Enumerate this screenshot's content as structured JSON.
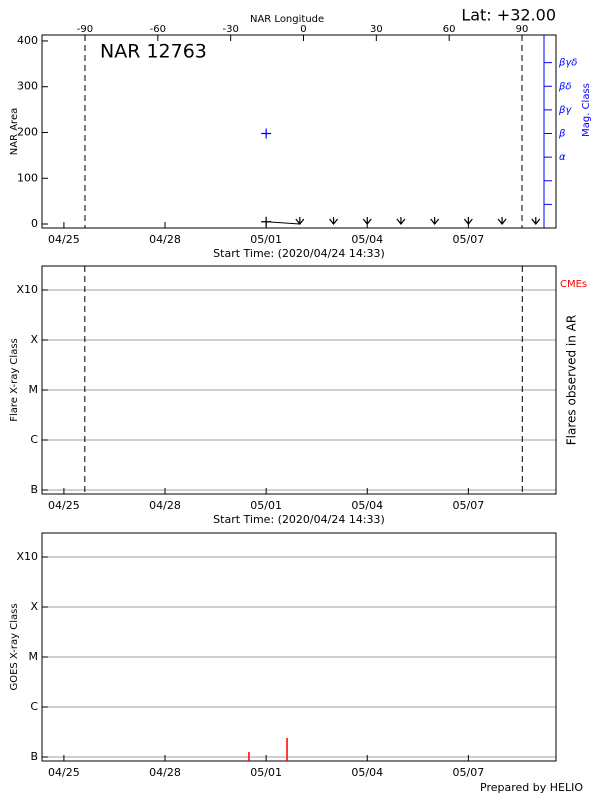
{
  "chart_data": [
    {
      "type": "line",
      "title": "NAR 12763",
      "annotation": "Lat: +32.00",
      "xlabel": "Start Time: (2020/04/24 14:33)",
      "ylabel": "NAR Area",
      "x2label": "NAR Longitude",
      "y2label": "Mag. Class",
      "xlim": [
        -0.65,
        14.6
      ],
      "xticks": [
        {
          "value": 0,
          "label": "04/25"
        },
        {
          "value": 3,
          "label": "04/28"
        },
        {
          "value": 6,
          "label": "05/01"
        },
        {
          "value": 9,
          "label": "05/04"
        },
        {
          "value": 12,
          "label": "05/07"
        }
      ],
      "ylim": [
        -8.7,
        413
      ],
      "yticks": [
        0,
        100,
        200,
        300,
        400
      ],
      "x2lim": [
        -107.7,
        104.0
      ],
      "x2ticks": [
        -90,
        -60,
        -30,
        0,
        30,
        60,
        90
      ],
      "x2_vlines": [
        -90,
        90
      ],
      "y2lim": [
        0,
        8.17
      ],
      "y2ticks": [
        {
          "value": 1,
          "label": null
        },
        {
          "value": 2,
          "label": null
        },
        {
          "value": 3,
          "label": "α"
        },
        {
          "value": 4,
          "label": "β"
        },
        {
          "value": 5,
          "label": "βγ"
        },
        {
          "value": 6,
          "label": "βδ"
        },
        {
          "value": 7,
          "label": "βγδ"
        }
      ],
      "y2color": "#0000ff",
      "grid": false,
      "series": [
        {
          "color": "#000000",
          "x": [
            6,
            7
          ],
          "values": [
            5,
            0
          ],
          "markers": [
            "+",
            "v"
          ],
          "line": true
        },
        {
          "color": "#000000",
          "x": [
            8,
            9,
            10,
            11,
            12,
            13,
            14
          ],
          "values": [
            0,
            0,
            0,
            0,
            0,
            0,
            0
          ],
          "markers": [
            "v",
            "v",
            "v",
            "v",
            "v",
            "v",
            "v"
          ],
          "line": false
        },
        {
          "color": "#0000ff",
          "axis": "y2",
          "x": [
            6
          ],
          "values": [
            4
          ],
          "markers": [
            "+"
          ],
          "line": false
        }
      ]
    },
    {
      "type": "line",
      "xlabel": "Start Time: (2020/04/24 14:33)",
      "ylabel": "Flare X-ray Class",
      "y2label": "Flares observed in AR",
      "annotation": "CMEs",
      "annotation_color": "#ff0000",
      "xlim": [
        -0.65,
        14.6
      ],
      "xticks": [
        {
          "value": 0,
          "label": "04/25"
        },
        {
          "value": 3,
          "label": "04/28"
        },
        {
          "value": 6,
          "label": "05/01"
        },
        {
          "value": 9,
          "label": "05/04"
        },
        {
          "value": 12,
          "label": "05/07"
        }
      ],
      "ylim": [
        -0.08,
        4.48
      ],
      "yticks": [
        {
          "value": 0,
          "label": "B"
        },
        {
          "value": 1,
          "label": "C"
        },
        {
          "value": 2,
          "label": "M"
        },
        {
          "value": 3,
          "label": "X"
        },
        {
          "value": 4,
          "label": "X10"
        }
      ],
      "vlines": [
        0.62,
        13.6
      ],
      "grid": true,
      "series": []
    },
    {
      "type": "bar",
      "ylabel": "GOES X-ray Class",
      "xlim": [
        -0.65,
        14.6
      ],
      "xticks": [
        {
          "value": 0,
          "label": "04/25"
        },
        {
          "value": 3,
          "label": "04/28"
        },
        {
          "value": 6,
          "label": "05/01"
        },
        {
          "value": 9,
          "label": "05/04"
        },
        {
          "value": 12,
          "label": "05/07"
        }
      ],
      "ylim": [
        -0.08,
        4.48
      ],
      "yticks": [
        {
          "value": 0,
          "label": "B"
        },
        {
          "value": 1,
          "label": "C"
        },
        {
          "value": 2,
          "label": "M"
        },
        {
          "value": 3,
          "label": "X"
        },
        {
          "value": 4,
          "label": "X10"
        }
      ],
      "grid": true,
      "series": [
        {
          "color": "#ff0000",
          "x": [
            5.49,
            6.62
          ],
          "values": [
            0.1,
            0.38
          ]
        }
      ]
    }
  ],
  "footer": "Prepared by HELIO"
}
